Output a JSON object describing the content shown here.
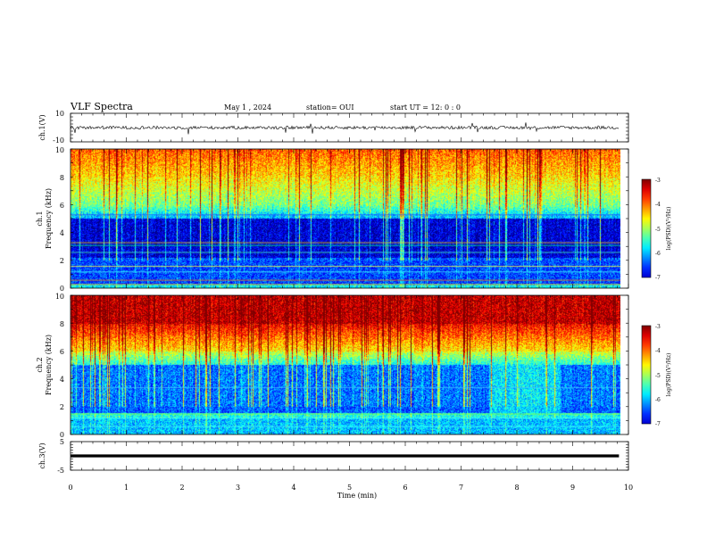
{
  "header": {
    "title": "VLF Spectra",
    "date": "May 1 , 2024",
    "station": "station= OUI",
    "start_ut": "start UT =  12: 0 : 0"
  },
  "chart_data": [
    {
      "type": "line",
      "name": "ch.1 waveform",
      "ylabel": "ch.1(V)",
      "ylim": [
        -10,
        10
      ],
      "yticks": [
        "10",
        "-10"
      ],
      "xlim": [
        0,
        10
      ],
      "color": "#000000"
    },
    {
      "type": "heatmap",
      "name": "ch.1 spectrogram",
      "ylabel_line1": "ch.1",
      "ylabel_line2": "Frequency (kHz)",
      "ylim": [
        0,
        10
      ],
      "yticks": [
        "0",
        "2",
        "4",
        "6",
        "8",
        "10"
      ],
      "xlim": [
        0,
        10
      ],
      "colorbar": {
        "label": "log(PSD)(V²/Hz)",
        "range": [
          -7,
          -3
        ],
        "ticks": [
          "-3",
          "-4",
          "-5",
          "-6",
          "-7"
        ]
      }
    },
    {
      "type": "heatmap",
      "name": "ch.2 spectrogram",
      "ylabel_line1": "ch.2",
      "ylabel_line2": "Frequency (kHz)",
      "ylim": [
        0,
        10
      ],
      "yticks": [
        "0",
        "2",
        "4",
        "6",
        "8",
        "10"
      ],
      "xlim": [
        0,
        10
      ],
      "colorbar": {
        "label": "log(PSD)(V²/Hz)",
        "range": [
          -7,
          -3
        ],
        "ticks": [
          "-3",
          "-4",
          "-5",
          "-6",
          "-7"
        ]
      }
    },
    {
      "type": "line",
      "name": "ch.3 waveform",
      "ylabel": "ch.3(V)",
      "ylim": [
        -5,
        5
      ],
      "yticks": [
        "5",
        "0",
        "-5"
      ],
      "xlim": [
        0,
        10
      ],
      "constant_value": 0,
      "color": "#000000"
    }
  ],
  "xaxis": {
    "label": "Time (min)",
    "ticks": [
      "0",
      "1",
      "2",
      "3",
      "4",
      "5",
      "6",
      "7",
      "8",
      "9",
      "10"
    ],
    "data_end": 9.83
  },
  "colors": {
    "low": "#000080",
    "mid": "#00ff66",
    "high": "#ff0000"
  }
}
